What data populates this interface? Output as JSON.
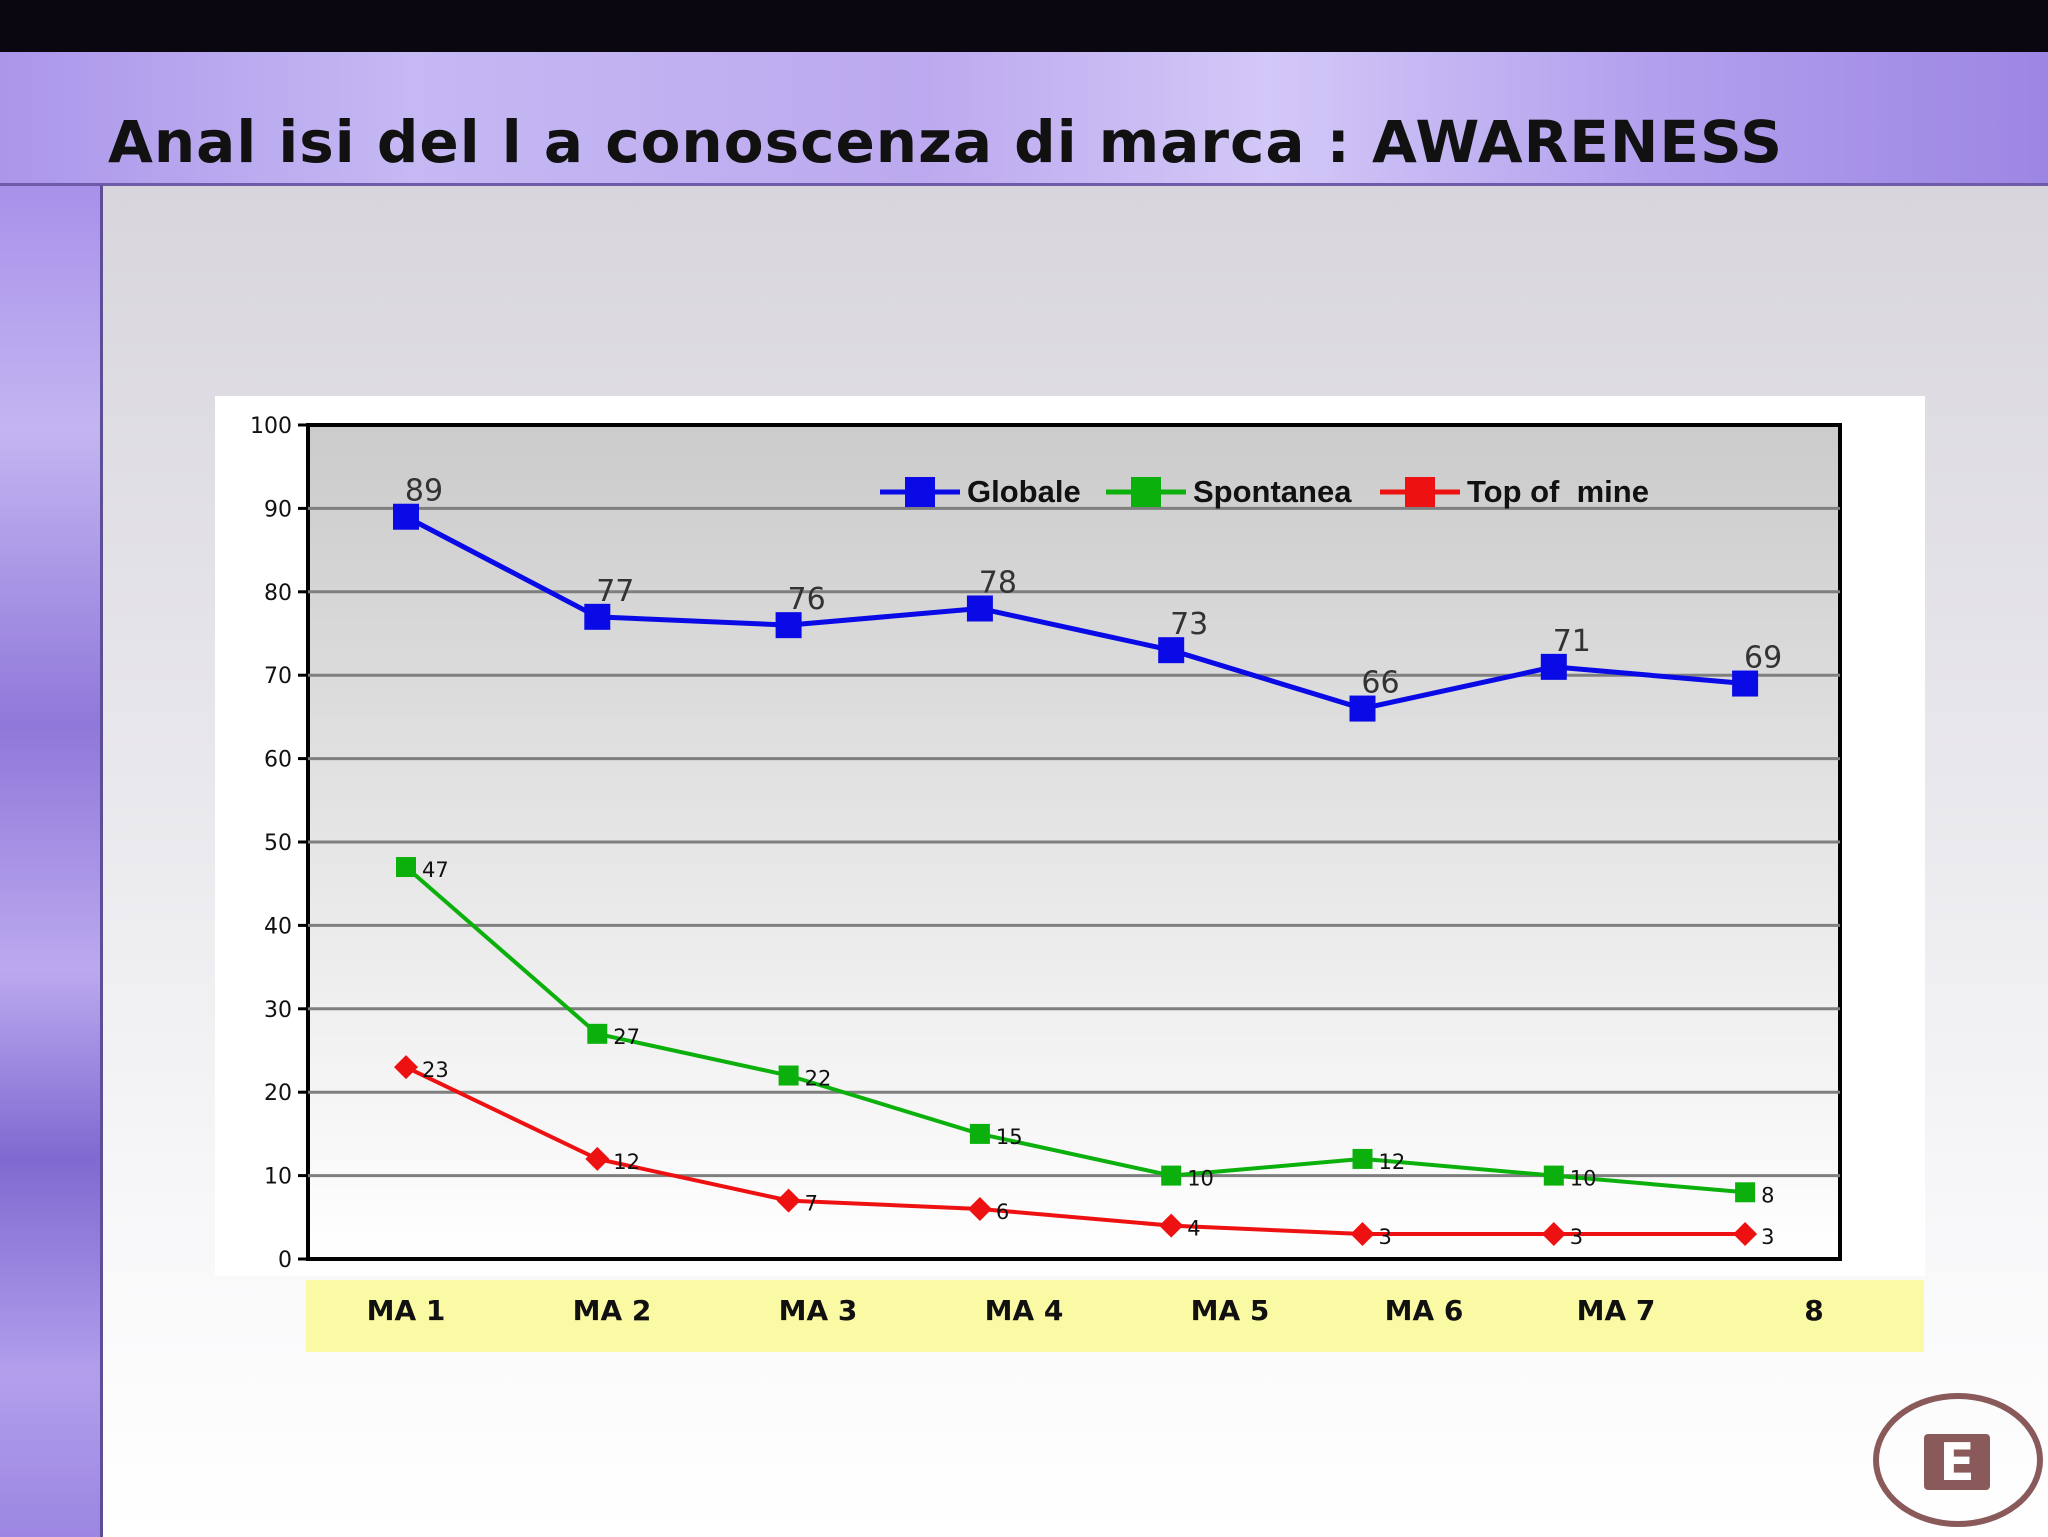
{
  "slide": {
    "title": "Anal isi del l a conoscenza di marca : AWARENESS"
  },
  "logo": {
    "letter": "E"
  },
  "chart_data": {
    "type": "line",
    "title": "",
    "xlabel": "",
    "ylabel": "",
    "categories": [
      "MA 1",
      "MA 2",
      "MA 3",
      "MA 4",
      "MA 5",
      "MA 6",
      "MA 7",
      "8"
    ],
    "ylim": [
      0,
      100
    ],
    "yticks": [
      0,
      10,
      20,
      30,
      40,
      50,
      60,
      70,
      80,
      90,
      100
    ],
    "grid": true,
    "legend_position": "top-right",
    "series": [
      {
        "name": "Globale",
        "color": "#0a0ae6",
        "marker": "square",
        "values": [
          89,
          77,
          76,
          78,
          73,
          66,
          71,
          69
        ]
      },
      {
        "name": "Spontanea",
        "color": "#0cb00c",
        "marker": "square",
        "values": [
          47,
          27,
          22,
          15,
          10,
          12,
          10,
          8
        ]
      },
      {
        "name": "Top of  mine",
        "color": "#ee1111",
        "marker": "diamond",
        "values": [
          23,
          12,
          7,
          6,
          4,
          3,
          3,
          3
        ]
      }
    ]
  }
}
